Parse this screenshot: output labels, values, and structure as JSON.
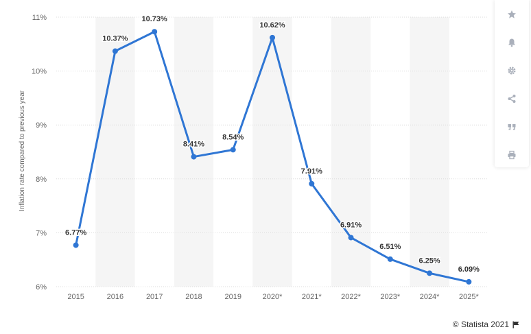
{
  "chart_data": {
    "type": "line",
    "title": "",
    "ylabel": "Inflation rate compared to previous year",
    "xlabel": "",
    "categories": [
      "2015",
      "2016",
      "2017",
      "2018",
      "2019",
      "2020*",
      "2021*",
      "2022*",
      "2023*",
      "2024*",
      "2025*"
    ],
    "values": [
      6.77,
      10.37,
      10.73,
      8.41,
      8.54,
      10.62,
      7.91,
      6.91,
      6.51,
      6.25,
      6.09
    ],
    "data_labels": [
      "6.77%",
      "10.37%",
      "10.73%",
      "8.41%",
      "8.54%",
      "10.62%",
      "7.91%",
      "6.91%",
      "6.51%",
      "6.25%",
      "6.09%"
    ],
    "ylim": [
      6,
      11
    ],
    "yticks": [
      6,
      7,
      8,
      9,
      10,
      11
    ],
    "ytick_labels": [
      "6%",
      "7%",
      "8%",
      "9%",
      "10%",
      "11%"
    ],
    "grid": true,
    "line_color": "#2f76d4"
  },
  "sidebar": {
    "icons": [
      "star-icon",
      "bell-icon",
      "gear-icon",
      "share-icon",
      "quote-icon",
      "print-icon"
    ]
  },
  "footer": {
    "copyright": "© Statista 2021",
    "flag_icon": "flag-icon"
  }
}
